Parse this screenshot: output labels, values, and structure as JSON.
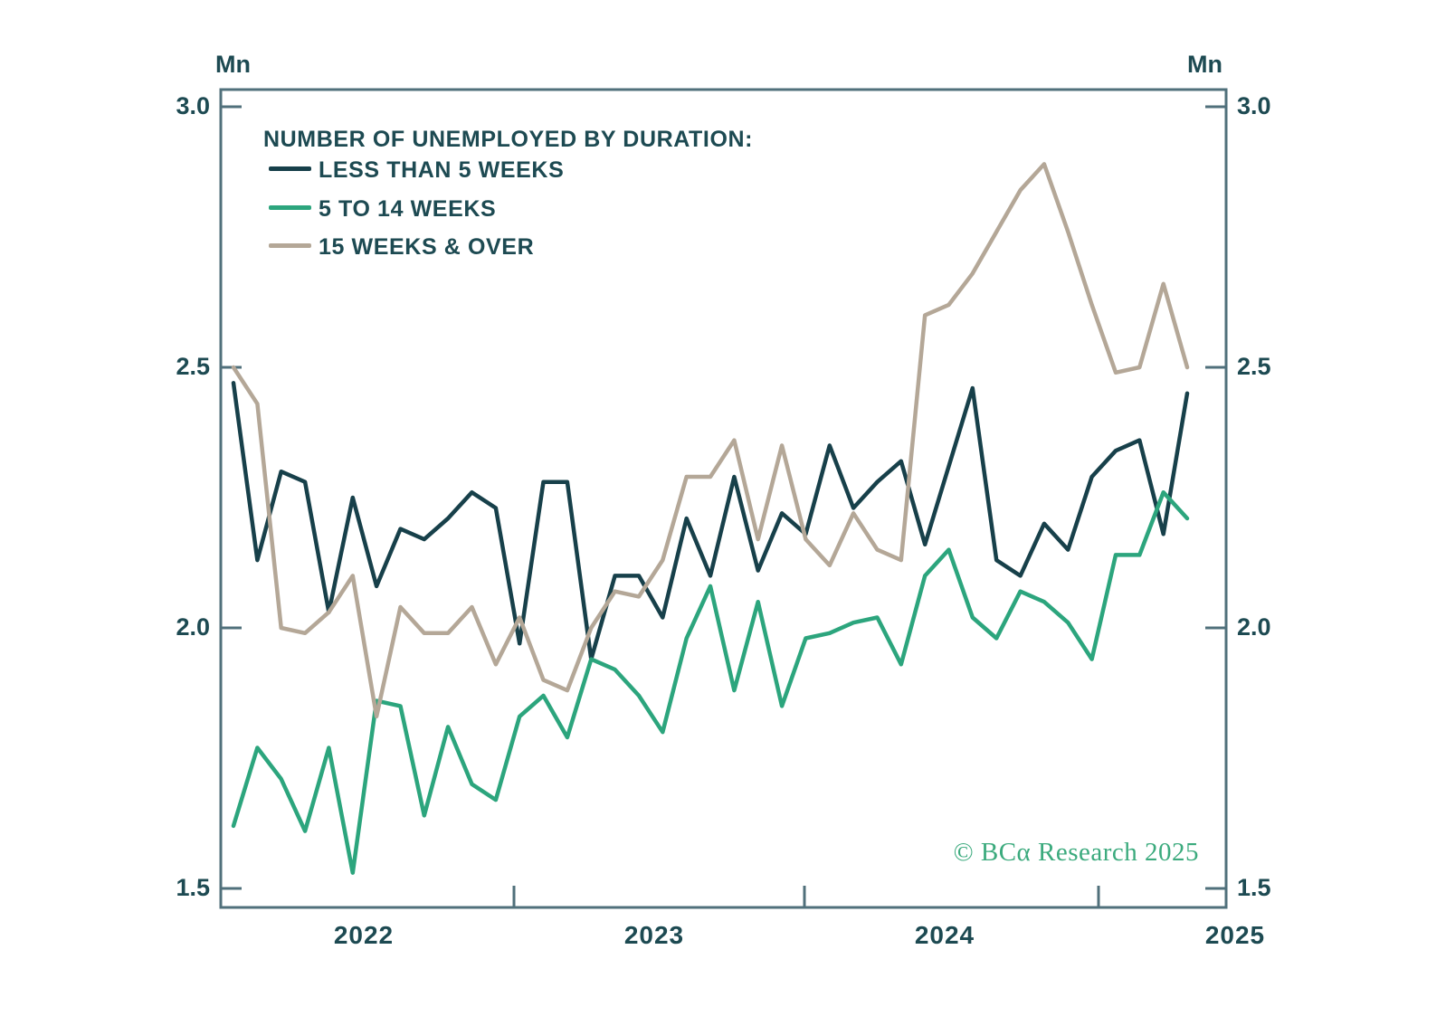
{
  "legend": {
    "title": "NUMBER OF UNEMPLOYED BY DURATION:",
    "items": [
      {
        "label": "LESS THAN 5 WEEKS"
      },
      {
        "label": "5 TO 14 WEEKS"
      },
      {
        "label": "15 WEEKS & OVER"
      }
    ]
  },
  "axes": {
    "unit_label_left": "Mn",
    "unit_label_right": "Mn",
    "y_tick_labels": [
      "3.0",
      "2.5",
      "2.0",
      "1.5"
    ],
    "x_tick_labels": [
      "2022",
      "2023",
      "2024",
      "2025"
    ]
  },
  "watermark": "© BCα Research 2025",
  "colors": {
    "series_less_than_5": "#17404a",
    "series_5_to_14": "#2ca57d",
    "series_15_over": "#b4a797",
    "axis": "#50707b",
    "text": "#1d4a52",
    "watermark_green": "#3baa7d",
    "background": "#ffffff"
  },
  "chart_data": {
    "type": "line",
    "title": "NUMBER OF UNEMPLOYED BY DURATION:",
    "x_frequency": "monthly",
    "x_start": "2022-01",
    "x_end": "2025-05",
    "x_year_labels": [
      "2022",
      "2023",
      "2024",
      "2025"
    ],
    "ylabel": "Mn",
    "ylim": [
      1.5,
      3.0
    ],
    "y_ticks": [
      1.5,
      2.0,
      2.5,
      3.0
    ],
    "grid": false,
    "legend_position": "top-left-inside",
    "series": [
      {
        "name": "LESS THAN 5 WEEKS",
        "color": "#17404a",
        "values": [
          2.47,
          2.13,
          2.3,
          2.28,
          2.03,
          2.25,
          2.08,
          2.19,
          2.17,
          2.21,
          2.26,
          2.23,
          1.97,
          2.28,
          2.28,
          1.94,
          2.1,
          2.1,
          2.02,
          2.21,
          2.1,
          2.29,
          2.11,
          2.22,
          2.18,
          2.35,
          2.23,
          2.28,
          2.32,
          2.16,
          2.31,
          2.46,
          2.13,
          2.1,
          2.2,
          2.15,
          2.29,
          2.34,
          2.36,
          2.18,
          2.45
        ]
      },
      {
        "name": "5 TO 14 WEEKS",
        "color": "#2ca57d",
        "values": [
          1.62,
          1.77,
          1.71,
          1.61,
          1.77,
          1.53,
          1.86,
          1.85,
          1.64,
          1.81,
          1.7,
          1.67,
          1.83,
          1.87,
          1.79,
          1.94,
          1.92,
          1.87,
          1.8,
          1.98,
          2.08,
          1.88,
          2.05,
          1.85,
          1.98,
          1.99,
          2.01,
          2.02,
          1.93,
          2.1,
          2.15,
          2.02,
          1.98,
          2.07,
          2.05,
          2.01,
          1.94,
          2.14,
          2.14,
          2.26,
          2.21
        ]
      },
      {
        "name": "15 WEEKS & OVER",
        "color": "#b4a797",
        "values": [
          2.5,
          2.43,
          2.0,
          1.99,
          2.03,
          2.1,
          1.83,
          2.04,
          1.99,
          1.99,
          2.04,
          1.93,
          2.02,
          1.9,
          1.88,
          2.0,
          2.07,
          2.06,
          2.13,
          2.29,
          2.29,
          2.36,
          2.17,
          2.35,
          2.17,
          2.12,
          2.22,
          2.15,
          2.13,
          2.6,
          2.62,
          2.68,
          2.76,
          2.84,
          2.89,
          2.76,
          2.62,
          2.49,
          2.5,
          2.66,
          2.5
        ]
      }
    ]
  }
}
